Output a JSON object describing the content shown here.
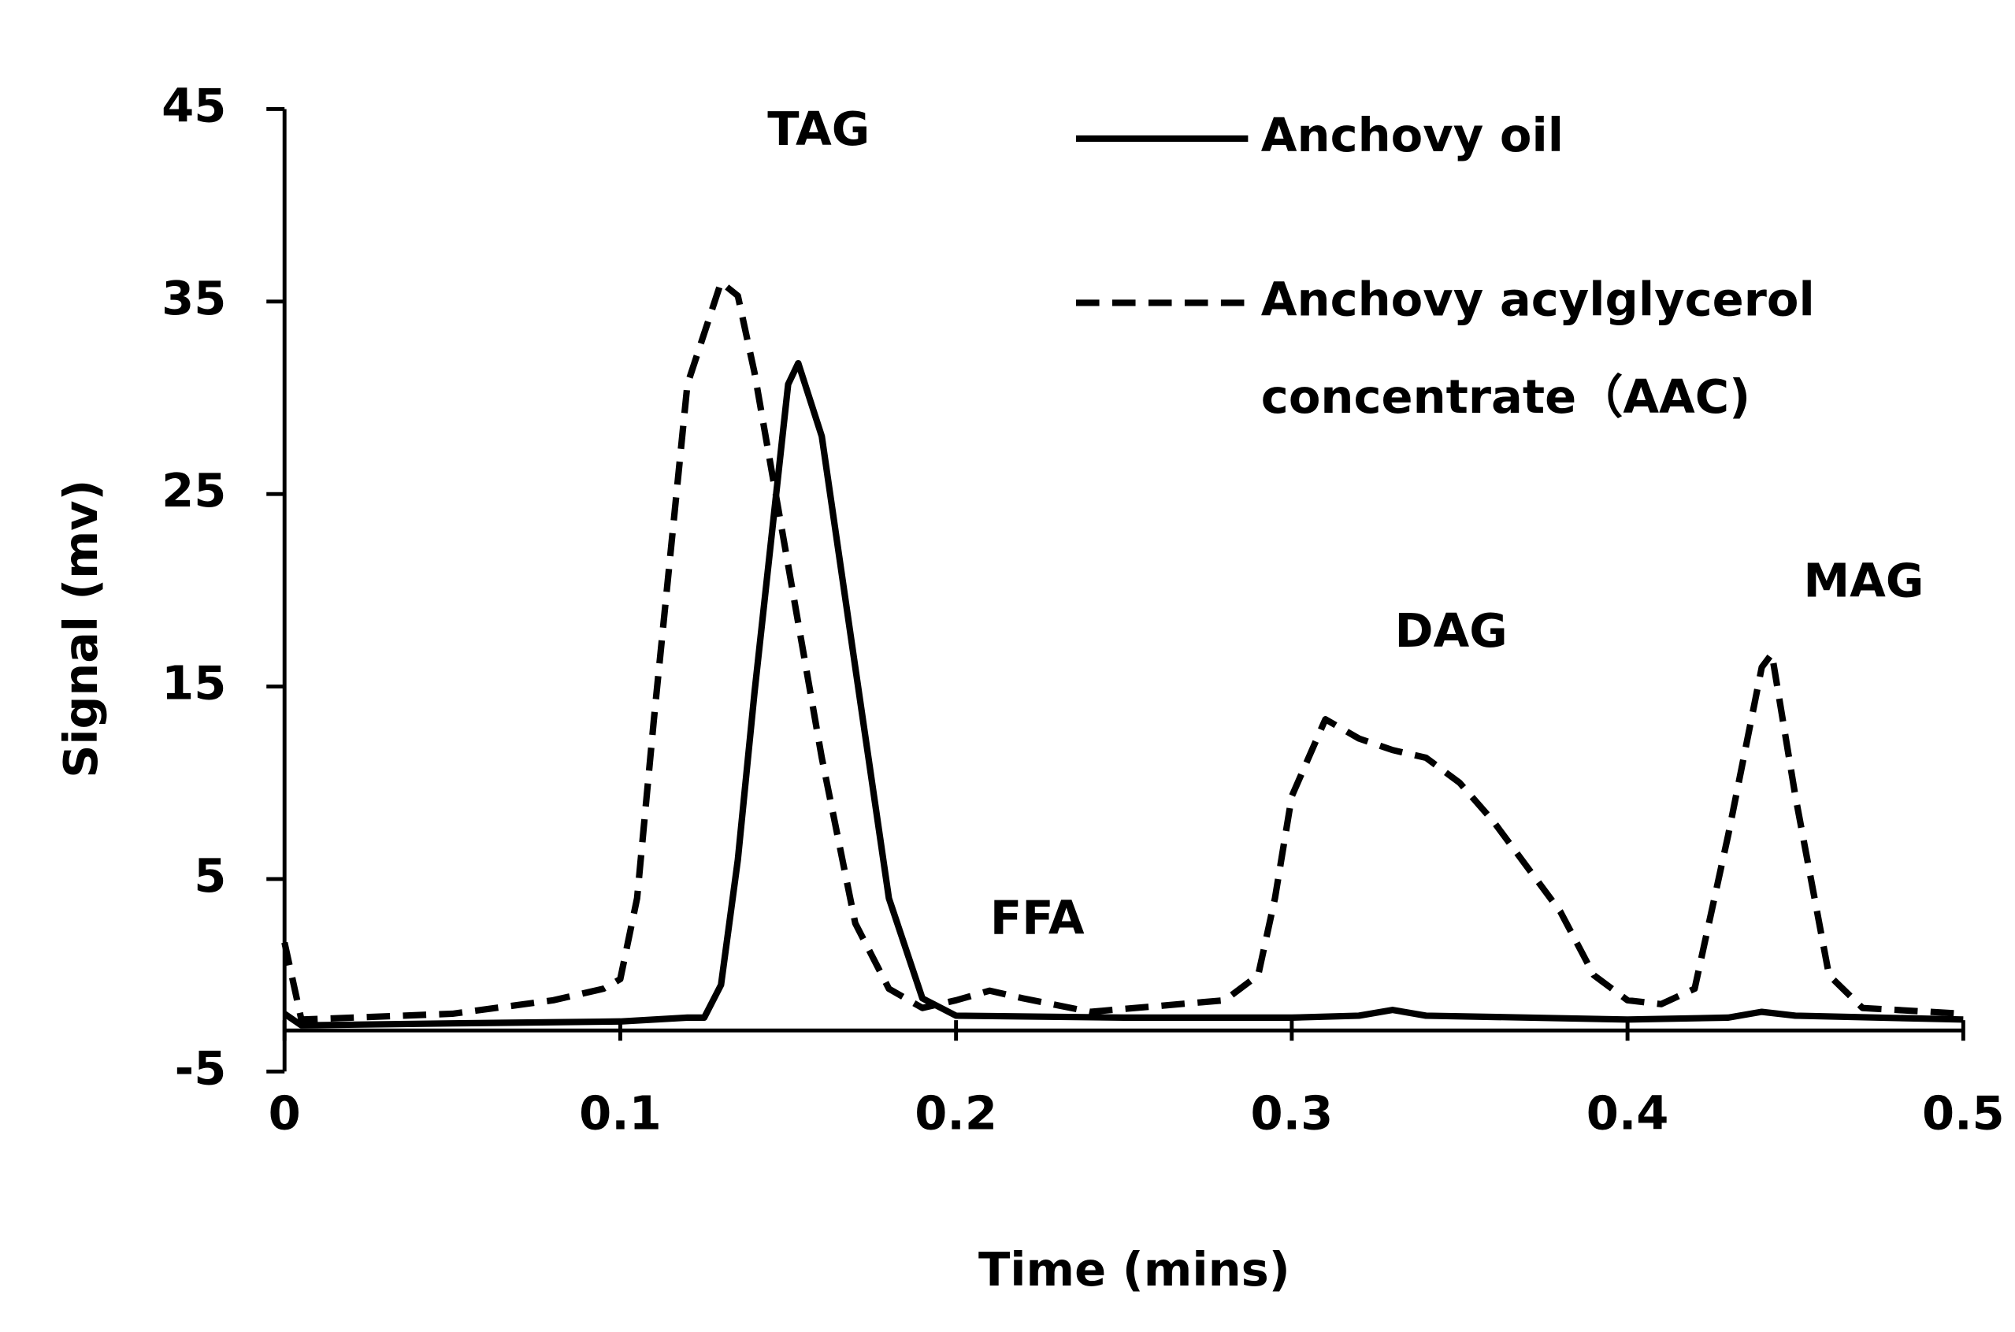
{
  "chart_data": {
    "type": "line",
    "xlabel": "Time (mins)",
    "ylabel": "Signal (mv)",
    "xlim": [
      0,
      0.5
    ],
    "xticks": [
      0,
      0.1,
      0.2,
      0.3,
      0.4,
      0.5
    ],
    "ylim": [
      -5,
      45
    ],
    "yticks": [
      -5,
      5,
      15,
      25,
      35,
      45
    ],
    "annotations": [
      "TAG",
      "FFA",
      "DAG",
      "MAG"
    ],
    "series": [
      {
        "name": "Anchovy oil",
        "color": "#000000",
        "dash": "solid",
        "x": [
          0,
          0.005,
          0.05,
          0.1,
          0.12,
          0.125,
          0.13,
          0.135,
          0.14,
          0.145,
          0.15,
          0.153,
          0.16,
          0.17,
          0.18,
          0.19,
          0.2,
          0.25,
          0.3,
          0.32,
          0.33,
          0.34,
          0.4,
          0.43,
          0.44,
          0.45,
          0.5
        ],
        "values": [
          -2,
          -2.6,
          -2.5,
          -2.4,
          -2.2,
          -2.2,
          -0.5,
          6,
          14.7,
          22.7,
          30.7,
          31.8,
          28,
          16,
          4,
          -1.2,
          -2.1,
          -2.2,
          -2.2,
          -2.1,
          -1.8,
          -2.1,
          -2.3,
          -2.2,
          -1.9,
          -2.1,
          -2.3
        ]
      },
      {
        "name": "Anchovy acylglycerol concentrate（AAC)",
        "color": "#000000",
        "dash": "dashed",
        "x": [
          0,
          0.005,
          0.05,
          0.08,
          0.095,
          0.1,
          0.105,
          0.11,
          0.12,
          0.13,
          0.135,
          0.14,
          0.15,
          0.16,
          0.17,
          0.18,
          0.19,
          0.2,
          0.21,
          0.22,
          0.24,
          0.28,
          0.29,
          0.295,
          0.3,
          0.31,
          0.32,
          0.33,
          0.34,
          0.35,
          0.36,
          0.38,
          0.39,
          0.4,
          0.41,
          0.42,
          0.43,
          0.44,
          0.443,
          0.45,
          0.46,
          0.47,
          0.5
        ],
        "values": [
          1.7,
          -2.3,
          -2,
          -1.3,
          -0.7,
          -0.2,
          4,
          13.3,
          30.7,
          36,
          35.3,
          31.3,
          21.3,
          11.3,
          2.7,
          -0.7,
          -1.7,
          -1.3,
          -0.8,
          -1.2,
          -1.9,
          -1.3,
          0,
          4,
          9.3,
          13.3,
          12.3,
          11.7,
          11.3,
          10,
          8,
          3.3,
          0,
          -1.3,
          -1.5,
          -0.7,
          7.3,
          16,
          16.7,
          9.3,
          0,
          -1.7,
          -2
        ]
      }
    ]
  }
}
